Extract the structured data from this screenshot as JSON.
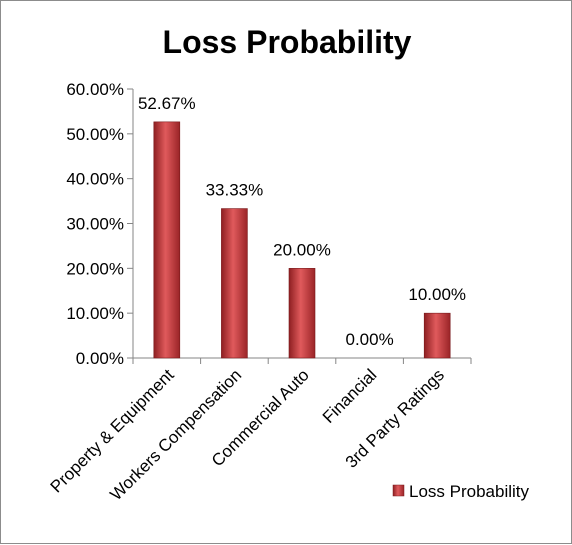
{
  "chart_data": {
    "type": "bar",
    "title": "Loss Probability",
    "xlabel": "",
    "ylabel": "",
    "categories": [
      "Property & Equipment",
      "Workers Compensation",
      "Commercial Auto",
      "Financial",
      "3rd Party Ratings"
    ],
    "series": [
      {
        "name": "Loss Probability",
        "values": [
          52.67,
          33.33,
          20.0,
          0.0,
          10.0
        ],
        "labels": [
          "52.67%",
          "33.33%",
          "20.00%",
          "0.00%",
          "10.00%"
        ],
        "color": "#c0393b"
      }
    ],
    "ylim": [
      0,
      60
    ],
    "yticks": [
      0,
      10,
      20,
      30,
      40,
      50,
      60
    ],
    "ytick_labels": [
      "0.00%",
      "10.00%",
      "20.00%",
      "30.00%",
      "40.00%",
      "50.00%",
      "60.00%"
    ],
    "grid": false,
    "legend": "right"
  }
}
